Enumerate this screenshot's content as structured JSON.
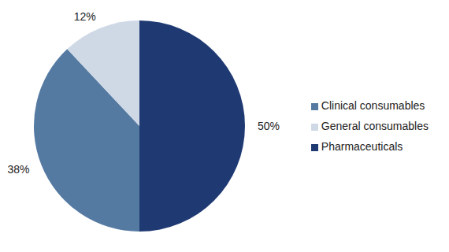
{
  "chart_data": {
    "type": "pie",
    "categories": [
      "Pharmaceuticals",
      "Clinical consumables",
      "General consumables"
    ],
    "values": [
      50,
      38,
      12
    ],
    "value_labels": [
      "50%",
      "38%",
      "12%"
    ],
    "colors": [
      "#1f3a73",
      "#557aa2",
      "#cfd9e6"
    ],
    "data_labels": true,
    "legend": "right"
  }
}
